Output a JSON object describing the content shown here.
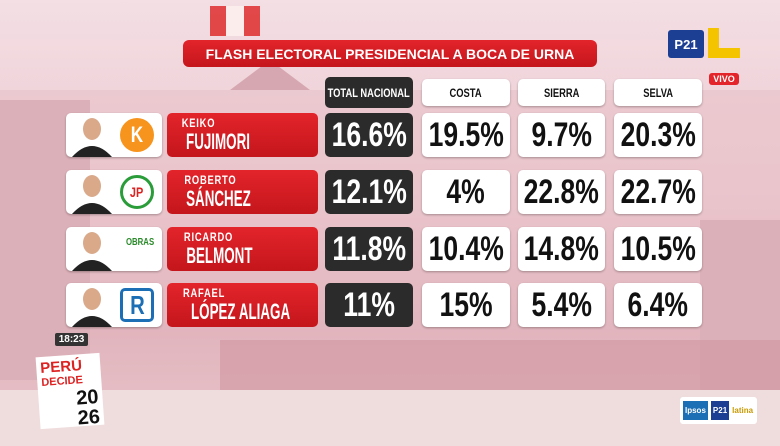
{
  "header": {
    "title": "FLASH ELECTORAL PRESIDENCIAL A BOCA DE URNA",
    "brand": "P21",
    "live": "VIVO"
  },
  "table": {
    "columns": [
      "TOTAL NACIONAL",
      "COSTA",
      "SIERRA",
      "SELVA"
    ],
    "rows": [
      {
        "first_name": "KEIKO",
        "last_name": "FUJIMORI",
        "party": "K",
        "values": [
          "16.6%",
          "19.5%",
          "9.7%",
          "20.3%"
        ]
      },
      {
        "first_name": "ROBERTO",
        "last_name": "SÁNCHEZ",
        "party": "JP",
        "values": [
          "12.1%",
          "4%",
          "22.8%",
          "22.7%"
        ]
      },
      {
        "first_name": "RICARDO",
        "last_name": "BELMONT",
        "party": "OBRAS",
        "values": [
          "11.8%",
          "10.4%",
          "14.8%",
          "10.5%"
        ]
      },
      {
        "first_name": "RAFAEL",
        "last_name": "LÓPEZ ALIAGA",
        "party": "R",
        "values": [
          "11%",
          "15%",
          "5.4%",
          "6.4%"
        ]
      }
    ]
  },
  "footer": {
    "time": "18:23",
    "logo": [
      "PERÚ",
      "DECIDE",
      "20",
      "26"
    ],
    "sponsors": [
      "Ipsos",
      "P21",
      "latina"
    ]
  }
}
